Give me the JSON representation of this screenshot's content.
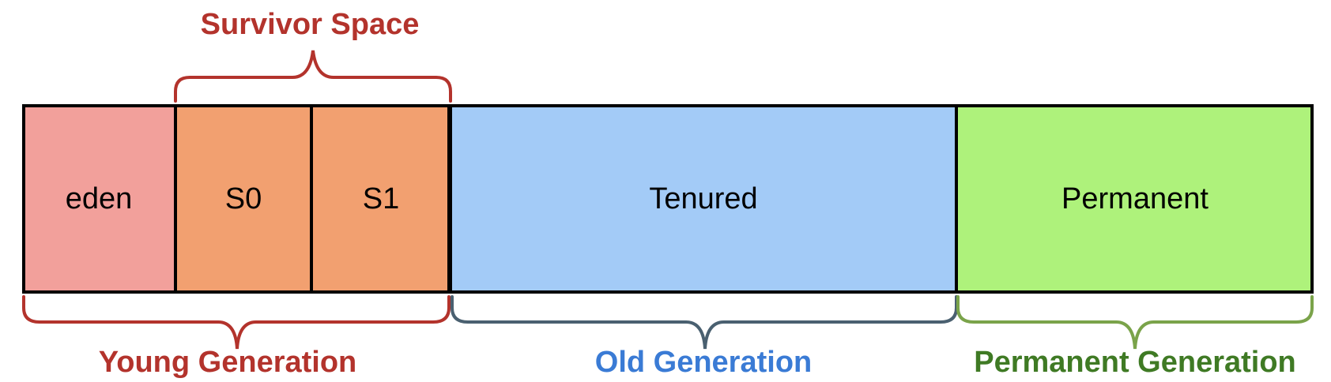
{
  "top_label": "Survivor Space",
  "regions": [
    {
      "key": "eden",
      "label": "eden",
      "color": "#f2a09b"
    },
    {
      "key": "s0",
      "label": "S0",
      "color": "#f2a070"
    },
    {
      "key": "s1",
      "label": "S1",
      "color": "#f2a070"
    },
    {
      "key": "tenured",
      "label": "Tenured",
      "color": "#a3cbf7"
    },
    {
      "key": "permanent",
      "label": "Permanent",
      "color": "#aef27b"
    }
  ],
  "bottom_labels": {
    "young": {
      "text": "Young Generation",
      "color": "#b3332c"
    },
    "old": {
      "text": "Old Generation",
      "color": "#3a7bd5"
    },
    "permanent": {
      "text": "Permanent Generation",
      "color": "#3f7a24"
    }
  },
  "brace_colors": {
    "survivor": "#b3332c",
    "young": "#b3332c",
    "old": "#4a6070",
    "permanent": "#7aa34a"
  }
}
